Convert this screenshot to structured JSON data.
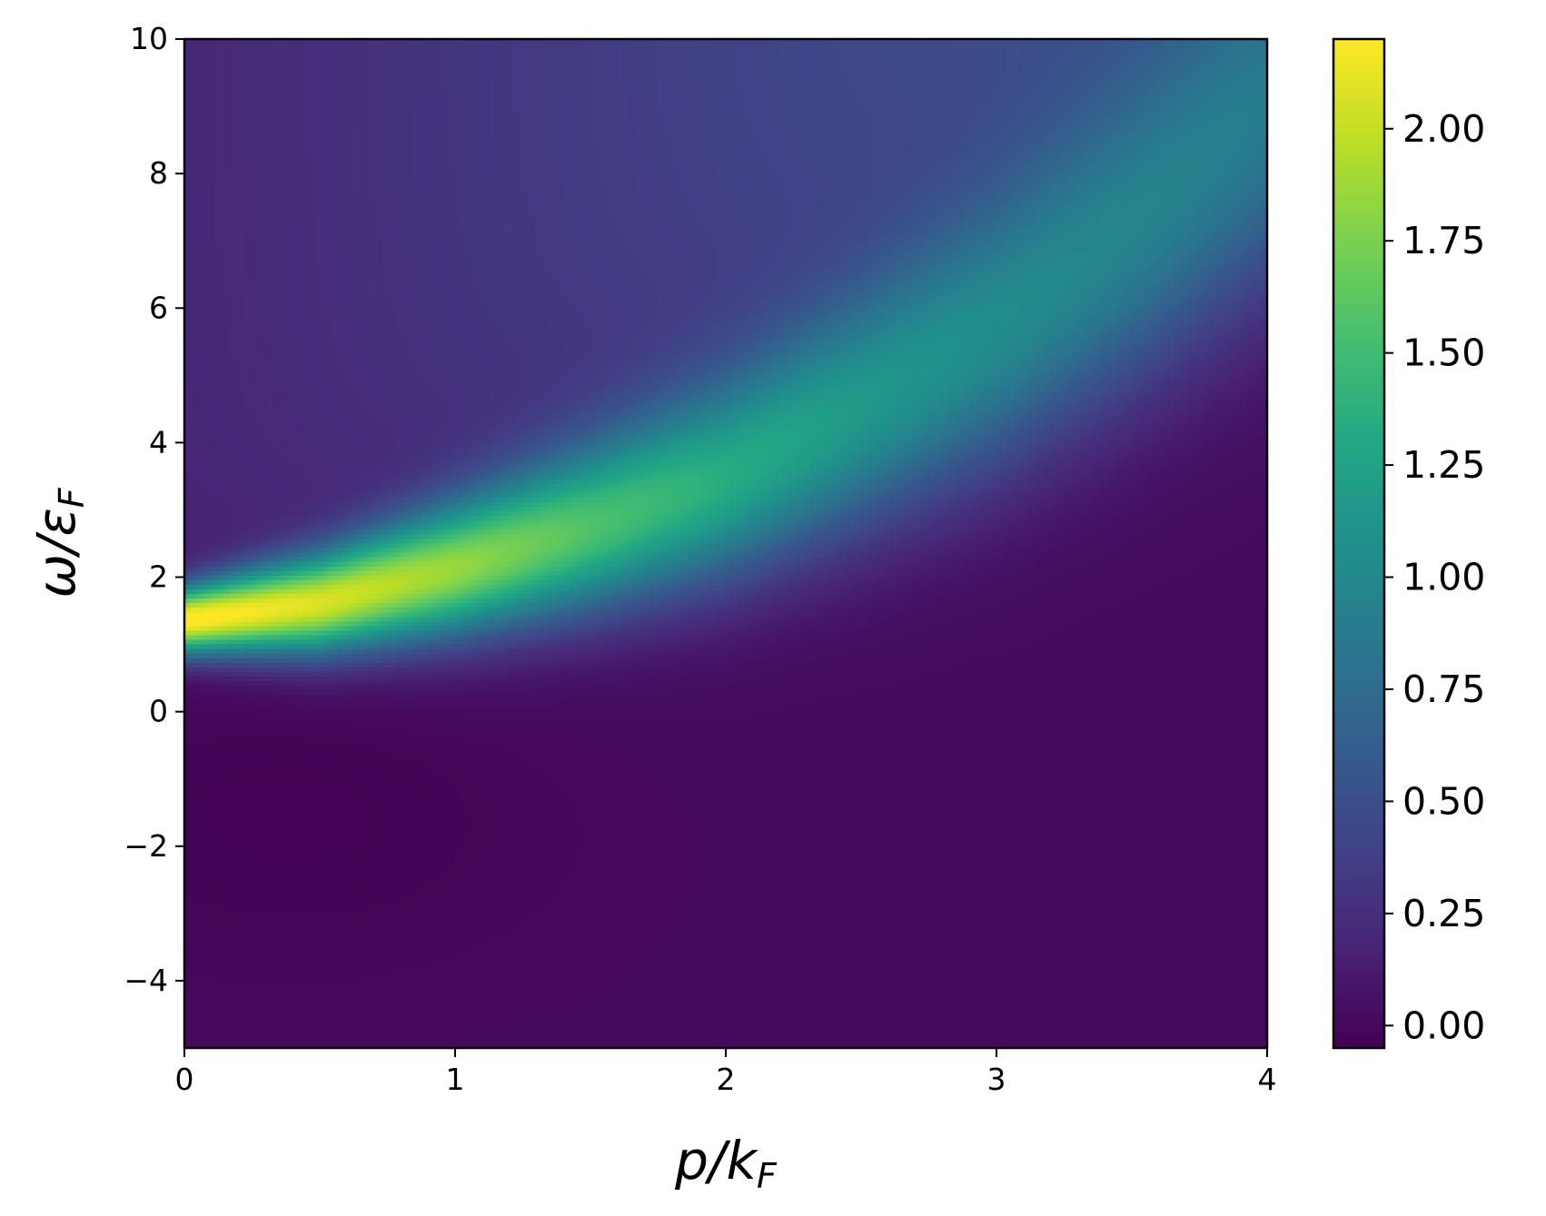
{
  "chart_data": {
    "type": "heatmap",
    "title": "",
    "xlabel": "p/k_F",
    "ylabel": "ω/ε_F",
    "xlabel_parts": {
      "main": "p/k",
      "sub": "F"
    },
    "ylabel_parts": {
      "main": "ω/ε",
      "sub": "F"
    },
    "xlim": [
      0,
      4
    ],
    "ylim": [
      -5,
      10
    ],
    "xticks": [
      0,
      1,
      2,
      3,
      4
    ],
    "xtick_labels": [
      "0",
      "1",
      "2",
      "3",
      "4"
    ],
    "yticks": [
      -4,
      -2,
      0,
      2,
      4,
      6,
      8,
      10
    ],
    "ytick_labels": [
      "−4",
      "−2",
      "0",
      "2",
      "4",
      "6",
      "8",
      "10"
    ],
    "colormap": "viridis",
    "colorbar": {
      "vmin": -0.05,
      "vmax": 2.2,
      "ticks": [
        0.0,
        0.25,
        0.5,
        0.75,
        1.0,
        1.25,
        1.5,
        1.75,
        2.0
      ],
      "tick_labels": [
        "0.00",
        "0.25",
        "0.50",
        "0.75",
        "1.00",
        "1.25",
        "1.50",
        "1.75",
        "2.00"
      ]
    },
    "ridge": {
      "description_points": [
        {
          "p": 0.0,
          "omega": 1.35,
          "peak": 2.2
        },
        {
          "p": 0.5,
          "omega": 1.6,
          "peak": 2.0
        },
        {
          "p": 1.0,
          "omega": 2.1,
          "peak": 1.75
        },
        {
          "p": 1.5,
          "omega": 2.7,
          "peak": 1.45
        },
        {
          "p": 2.0,
          "omega": 3.4,
          "peak": 1.2
        },
        {
          "p": 2.5,
          "omega": 4.4,
          "peak": 1.0
        },
        {
          "p": 3.0,
          "omega": 5.5,
          "peak": 0.85
        },
        {
          "p": 3.5,
          "omega": 6.9,
          "peak": 0.75
        },
        {
          "p": 4.0,
          "omega": 8.5,
          "peak": 0.65
        }
      ],
      "background_above": 0.2,
      "background_below": 0.0
    },
    "grid": false,
    "legend": "none"
  }
}
